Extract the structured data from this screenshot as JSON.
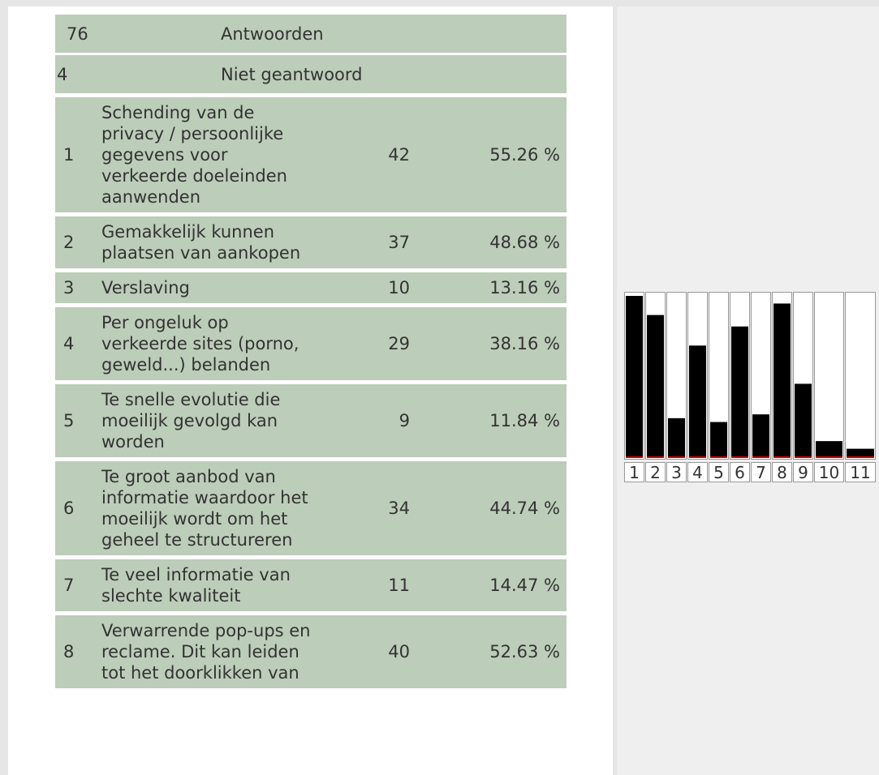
{
  "summary": [
    {
      "count": "76",
      "label": "Antwoorden"
    },
    {
      "count": "4",
      "label": "Niet geantwoord"
    }
  ],
  "rows": [
    {
      "num": "1",
      "lines": [
        "Schending van de",
        "privacy / persoonlijke",
        "gegevens voor",
        "verkeerde doeleinden",
        "aanwenden"
      ],
      "count": "42",
      "pct": "55.26 %"
    },
    {
      "num": "2",
      "lines": [
        "Gemakkelijk kunnen",
        "plaatsen van aankopen"
      ],
      "count": "37",
      "pct": "48.68 %"
    },
    {
      "num": "3",
      "lines": [
        "Verslaving"
      ],
      "count": "10",
      "pct": "13.16 %"
    },
    {
      "num": "4",
      "lines": [
        "Per ongeluk op",
        "verkeerde sites (porno,",
        "geweld...) belanden"
      ],
      "count": "29",
      "pct": "38.16 %"
    },
    {
      "num": "5",
      "lines": [
        "Te snelle evolutie die",
        "moeilijk gevolgd kan",
        "worden"
      ],
      "count": "9",
      "pct": "11.84 %"
    },
    {
      "num": "6",
      "lines": [
        "Te groot aanbod van",
        "informatie waardoor het",
        "moeilijk wordt om het",
        "geheel te structureren"
      ],
      "count": "34",
      "pct": "44.74 %"
    },
    {
      "num": "7",
      "lines": [
        "Te veel informatie van",
        "slechte kwaliteit"
      ],
      "count": "11",
      "pct": "14.47 %"
    },
    {
      "num": "8",
      "lines": [
        "Verwarrende pop-ups en",
        "reclame. Dit kan leiden",
        "tot het doorklikken van"
      ],
      "count": "40",
      "pct": "52.63 %"
    }
  ],
  "chart_data": {
    "type": "bar",
    "categories": [
      "1",
      "2",
      "3",
      "4",
      "5",
      "6",
      "7",
      "8",
      "9",
      "10",
      "11"
    ],
    "values": [
      42,
      37,
      10,
      29,
      9,
      34,
      11,
      40,
      19,
      4,
      2
    ],
    "ylim": [
      0,
      42
    ],
    "color": "#000000"
  }
}
